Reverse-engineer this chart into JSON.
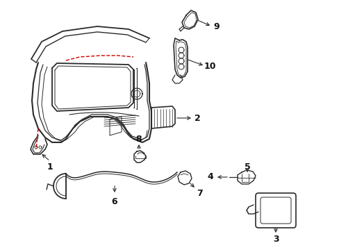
{
  "background_color": "#ffffff",
  "line_color": "#2a2a2a",
  "red_color": "#cc0000",
  "label_color": "#111111",
  "figsize": [
    4.89,
    3.6
  ],
  "dpi": 100
}
